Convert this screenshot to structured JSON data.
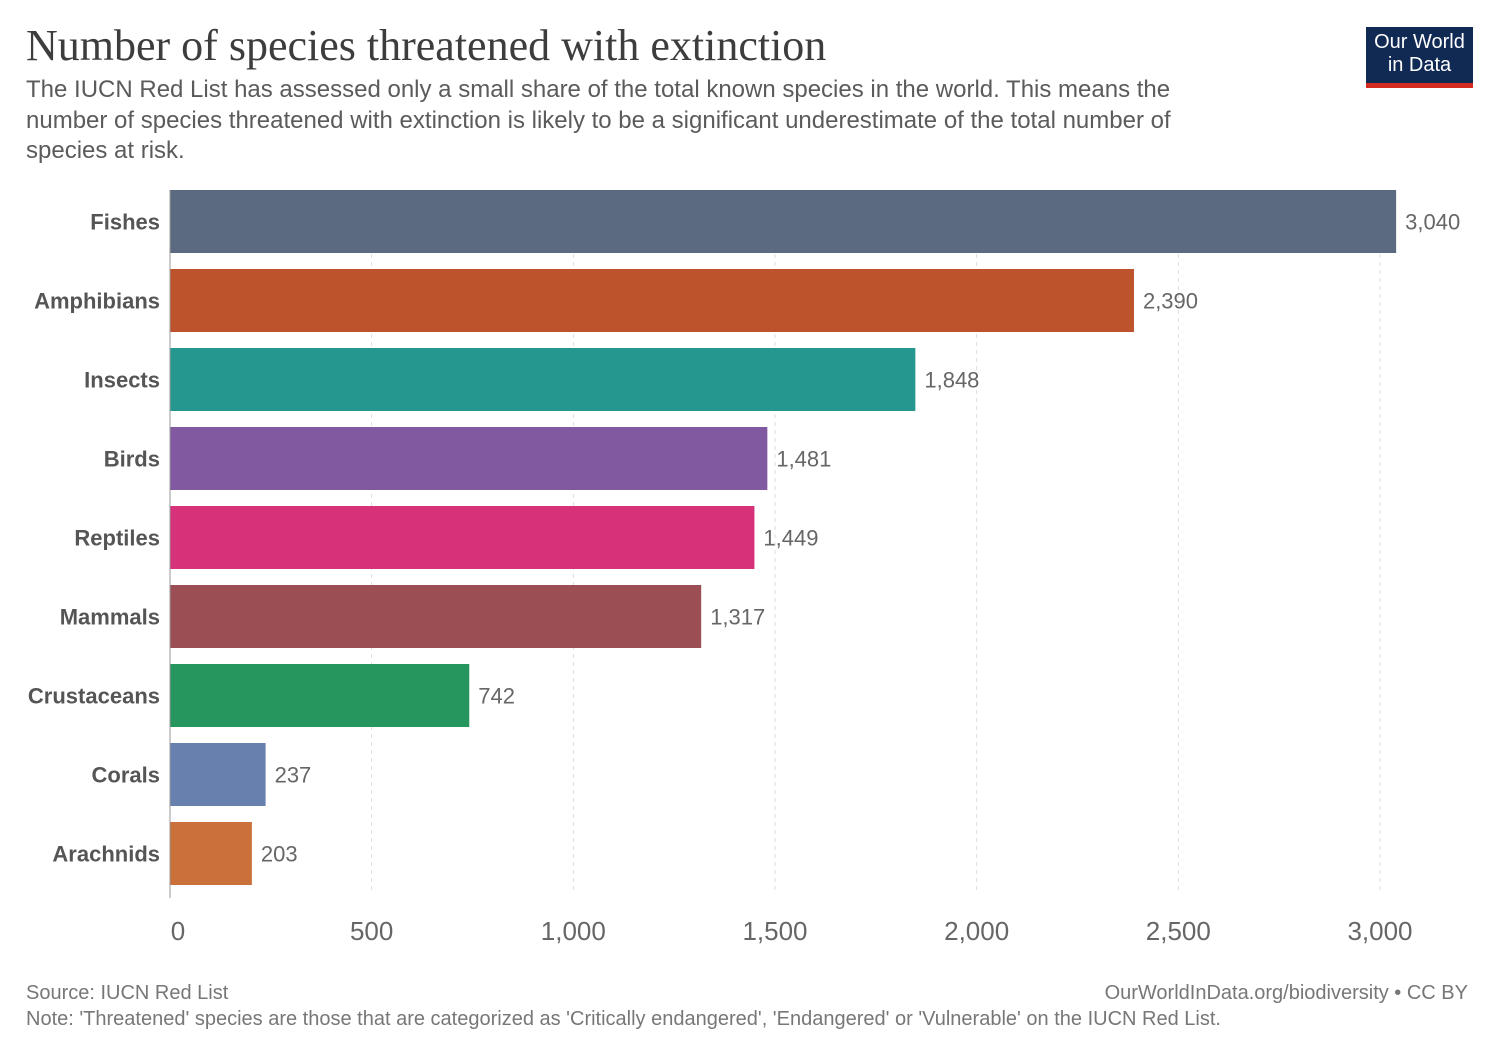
{
  "header": {
    "title": "Number of species threatened with extinction",
    "subtitle": "The IUCN Red List has assessed only a small share of the total known species in the world. This means the number of species threatened with extinction is likely to be a significant underestimate of the total number of species at risk.",
    "logo_text": "Our World in Data"
  },
  "footer": {
    "source": "Source: IUCN Red List",
    "url": "OurWorldInData.org/biodiversity • CC BY",
    "note": "Note: 'Threatened' species are those that are categorized as 'Critically endangered', 'Endangered' or 'Vulnerable' on the IUCN Red List."
  },
  "chart_data": {
    "type": "bar",
    "orientation": "horizontal",
    "categories": [
      "Fishes",
      "Amphibians",
      "Insects",
      "Birds",
      "Reptiles",
      "Mammals",
      "Crustaceans",
      "Corals",
      "Arachnids"
    ],
    "values": [
      3040,
      2390,
      1848,
      1481,
      1449,
      1317,
      742,
      237,
      203
    ],
    "value_labels": [
      "3,040",
      "2,390",
      "1,848",
      "1,481",
      "1,449",
      "1,317",
      "742",
      "237",
      "203"
    ],
    "colors": [
      "#5b6a80",
      "#bd532c",
      "#26978f",
      "#8059a0",
      "#d6327a",
      "#9b4f55",
      "#26955e",
      "#6880ad",
      "#c9703b"
    ],
    "xlim": [
      0,
      3000
    ],
    "x_ticks": [
      0,
      500,
      1000,
      1500,
      2000,
      2500,
      3000
    ],
    "x_tick_labels": [
      "0",
      "500",
      "1,000",
      "1,500",
      "2,000",
      "2,500",
      "3,000"
    ],
    "grid": "vertical dashed",
    "title": "Number of species threatened with extinction"
  }
}
